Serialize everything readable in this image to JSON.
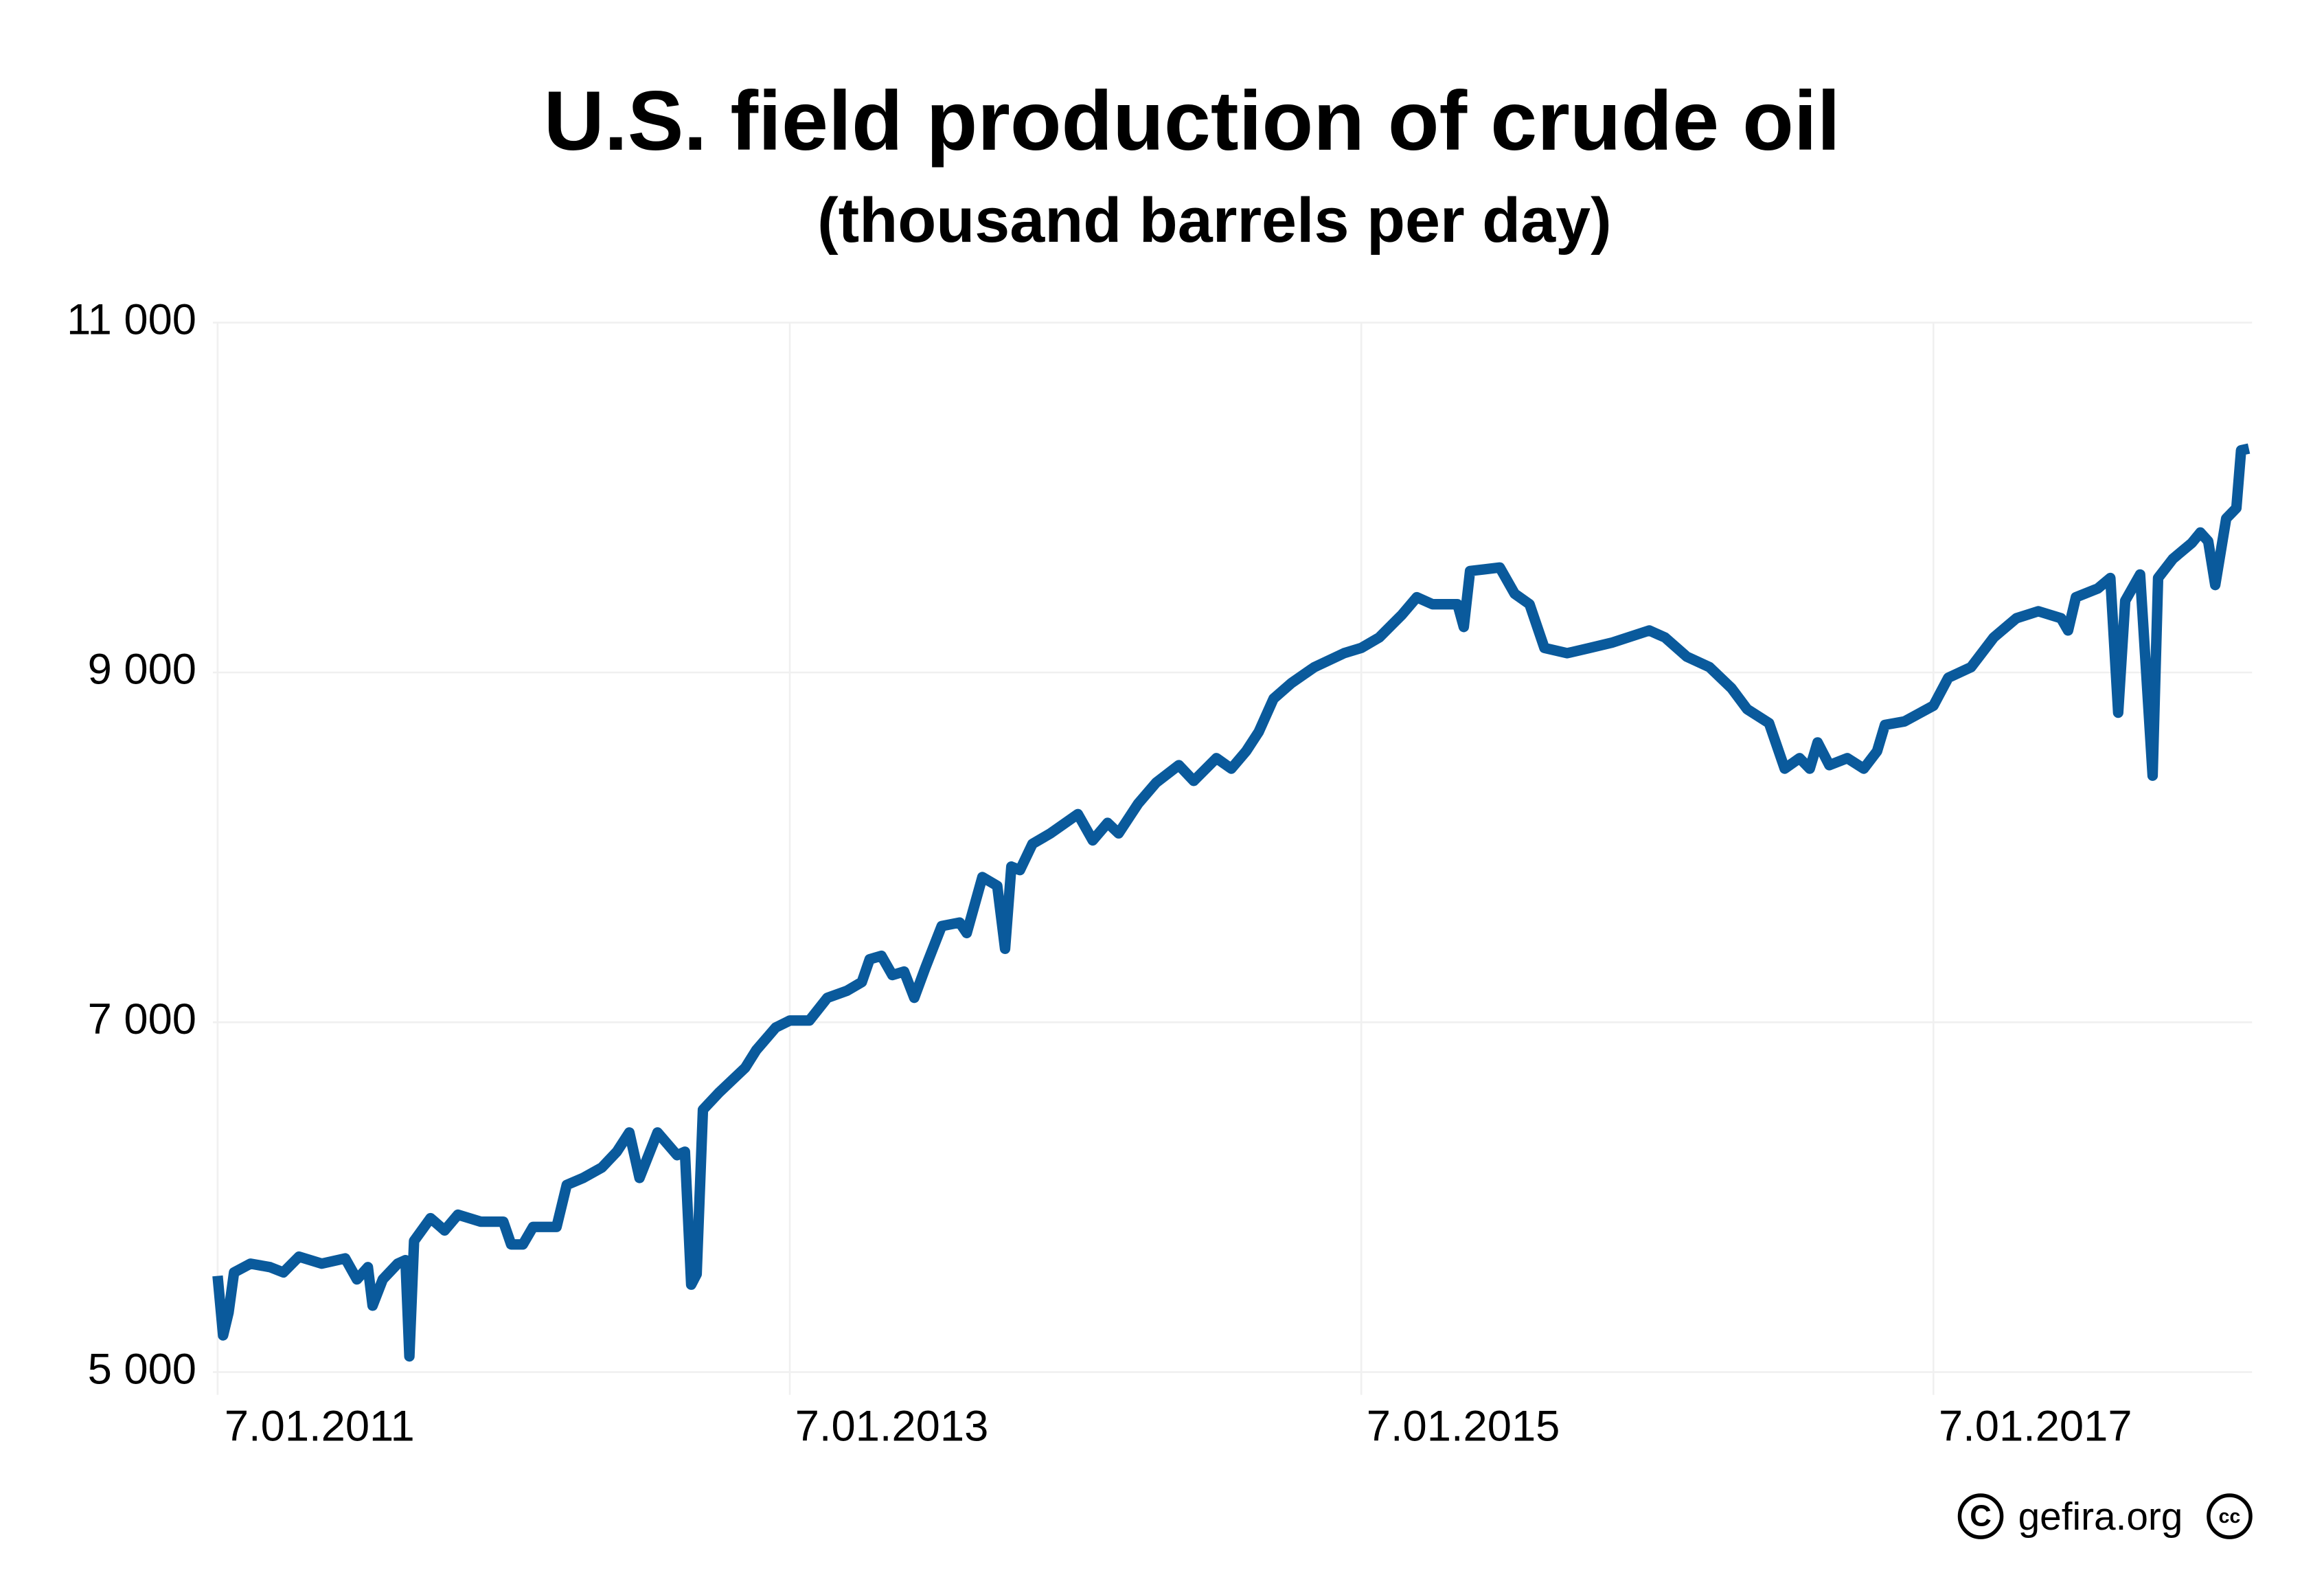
{
  "chart_data": {
    "type": "line",
    "title": "U.S. field production of crude oil",
    "subtitle": "(thousand barrels per day)",
    "source": "gefira.org",
    "color": "#0a5a9c",
    "grid": true,
    "xlim": [
      "2011-01-01",
      "2018-02-18"
    ],
    "xticks": [
      {
        "value": "2011-01-07",
        "label": "7.01.2011"
      },
      {
        "value": "2013-01-07",
        "label": "7.01.2013"
      },
      {
        "value": "2015-01-07",
        "label": "7.01.2015"
      },
      {
        "value": "2017-01-07",
        "label": "7.01.2017"
      }
    ],
    "ylim": [
      4870,
      11000
    ],
    "yticks": [
      {
        "value": 5000,
        "label": "5 000"
      },
      {
        "value": 7000,
        "label": "7 000"
      },
      {
        "value": 9000,
        "label": "9 000"
      },
      {
        "value": 11000,
        "label": "11 000"
      }
    ],
    "x": [
      "2011-01-07",
      "2011-01-14",
      "2011-01-21",
      "2011-01-28",
      "2011-02-18",
      "2011-03-15",
      "2011-04-01",
      "2011-04-21",
      "2011-05-20",
      "2011-06-19",
      "2011-07-04",
      "2011-07-18",
      "2011-07-24",
      "2011-08-06",
      "2011-08-25",
      "2011-09-04",
      "2011-09-09",
      "2011-09-15",
      "2011-10-06",
      "2011-10-24",
      "2011-11-10",
      "2011-12-09",
      "2012-01-07",
      "2012-01-17",
      "2012-02-01",
      "2012-02-14",
      "2012-03-15",
      "2012-03-28",
      "2012-04-18",
      "2012-05-12",
      "2012-05-31",
      "2012-06-16",
      "2012-06-29",
      "2012-07-22",
      "2012-08-16",
      "2012-08-26",
      "2012-09-03",
      "2012-09-10",
      "2012-09-18",
      "2012-10-09",
      "2012-11-11",
      "2012-11-25",
      "2012-12-20",
      "2013-01-07",
      "2013-02-01",
      "2013-02-24",
      "2013-03-21",
      "2013-04-09",
      "2013-04-19",
      "2013-05-04",
      "2013-05-18",
      "2013-06-02",
      "2013-06-15",
      "2013-06-29",
      "2013-07-20",
      "2013-08-12",
      "2013-08-21",
      "2013-09-10",
      "2013-09-29",
      "2013-10-09",
      "2013-10-17",
      "2013-10-28",
      "2013-11-13",
      "2013-12-06",
      "2014-01-10",
      "2014-01-29",
      "2014-02-17",
      "2014-03-03",
      "2014-03-28",
      "2014-04-20",
      "2014-05-19",
      "2014-06-07",
      "2014-07-06",
      "2014-07-25",
      "2014-08-13",
      "2014-08-29",
      "2014-09-17",
      "2014-10-10",
      "2014-11-08",
      "2014-12-16",
      "2015-01-07",
      "2015-01-30",
      "2015-02-28",
      "2015-03-19",
      "2015-04-08",
      "2015-05-10",
      "2015-05-18",
      "2015-05-26",
      "2015-07-03",
      "2015-07-22",
      "2015-08-10",
      "2015-08-29",
      "2015-09-27",
      "2015-10-26",
      "2015-11-23",
      "2016-01-10",
      "2016-01-30",
      "2016-02-27",
      "2016-03-27",
      "2016-04-24",
      "2016-05-14",
      "2016-06-11",
      "2016-07-01",
      "2016-07-20",
      "2016-08-02",
      "2016-08-12",
      "2016-08-27",
      "2016-09-19",
      "2016-10-10",
      "2016-10-27",
      "2016-11-06",
      "2016-12-01",
      "2017-01-07",
      "2017-01-26",
      "2017-02-24",
      "2017-03-25",
      "2017-04-23",
      "2017-05-21",
      "2017-06-19",
      "2017-06-28",
      "2017-07-08",
      "2017-08-05",
      "2017-08-21",
      "2017-08-31",
      "2017-09-09",
      "2017-09-28",
      "2017-10-14",
      "2017-10-21",
      "2017-11-09",
      "2017-12-03",
      "2017-12-14",
      "2017-12-24",
      "2018-01-02",
      "2018-01-16",
      "2018-01-29",
      "2018-02-04",
      "2018-02-14"
    ],
    "values": [
      5550,
      5210,
      5340,
      5570,
      5620,
      5600,
      5570,
      5660,
      5620,
      5650,
      5530,
      5600,
      5380,
      5530,
      5620,
      5640,
      5090,
      5750,
      5880,
      5810,
      5900,
      5860,
      5860,
      5730,
      5730,
      5830,
      5830,
      6070,
      6110,
      6170,
      6260,
      6370,
      6110,
      6370,
      6240,
      6260,
      5500,
      5560,
      6500,
      6600,
      6740,
      6840,
      6970,
      7010,
      7010,
      7140,
      7180,
      7230,
      7360,
      7380,
      7270,
      7290,
      7140,
      7310,
      7550,
      7570,
      7510,
      7830,
      7780,
      7420,
      7890,
      7870,
      8020,
      8080,
      8190,
      8040,
      8140,
      8080,
      8250,
      8370,
      8470,
      8380,
      8510,
      8450,
      8550,
      8660,
      8850,
      8940,
      9030,
      9110,
      9140,
      9200,
      9330,
      9430,
      9390,
      9390,
      9260,
      9580,
      9600,
      9450,
      9390,
      9140,
      9110,
      9140,
      9170,
      9240,
      9200,
      9090,
      9030,
      8910,
      8790,
      8710,
      8450,
      8510,
      8450,
      8600,
      8470,
      8510,
      8450,
      8550,
      8700,
      8720,
      8810,
      8970,
      9030,
      9200,
      9310,
      9350,
      9310,
      9240,
      9430,
      9480,
      9540,
      8770,
      9410,
      9560,
      8410,
      9540,
      9650,
      9740,
      9800,
      9750,
      9500,
      9880,
      9940,
      10270,
      10280
    ]
  }
}
